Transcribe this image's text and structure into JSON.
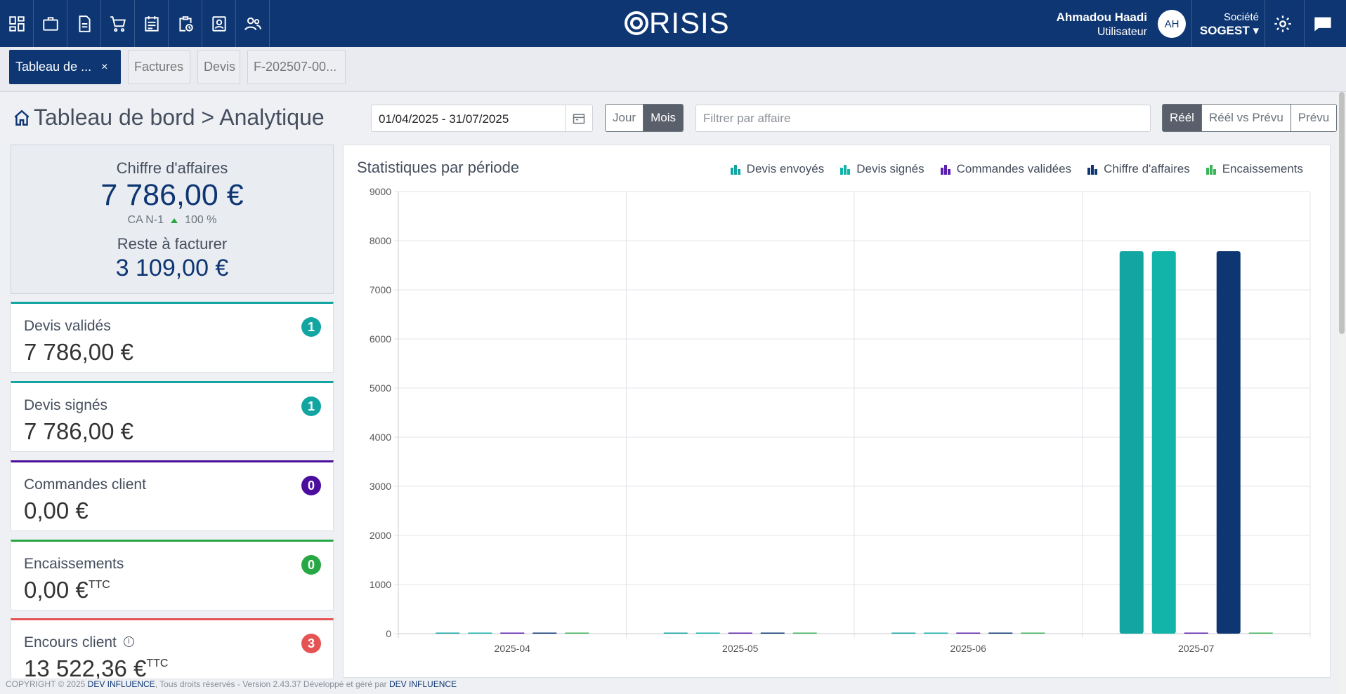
{
  "topbar": {
    "nav_icons": [
      "dashboard-icon",
      "briefcase-icon",
      "document-icon",
      "cart-icon",
      "calendar-list-icon",
      "clipboard-clock-icon",
      "contact-card-icon",
      "users-icon"
    ],
    "logo": "RISIS",
    "user_name": "Ahmadou Haadi",
    "user_role": "Utilisateur",
    "avatar_initials": "AH",
    "company_label": "Société",
    "company_name": "SOGEST ▾"
  },
  "tabs": [
    {
      "label": "Tableau de ...",
      "close": "×",
      "active": true
    },
    {
      "label": "Factures"
    },
    {
      "label": "Devis"
    },
    {
      "label": "F-202507-00..."
    }
  ],
  "header": {
    "title": "Tableau de bord > Analytique",
    "date_range": "01/04/2025 - 31/07/2025",
    "period": [
      "Jour",
      "Mois"
    ],
    "period_selected": "Mois",
    "filter_placeholder": "Filtrer par affaire",
    "mode": [
      "Réél",
      "Réél vs Prévu",
      "Prévu"
    ],
    "mode_selected": "Réél"
  },
  "summary": {
    "ca_title": "Chiffre d'affaires",
    "ca_value": "7 786,00 €",
    "ca_n1_label": "CA N-1",
    "ca_n1_value": "100 %",
    "rest_title": "Reste à facturer",
    "rest_value": "3 109,00 €"
  },
  "kpis": [
    {
      "title": "Devis validés",
      "value": "7 786,00 €",
      "badge": "1",
      "color": "#12a5a2"
    },
    {
      "title": "Devis signés",
      "value": "7 786,00 €",
      "badge": "1",
      "color": "#12a5a2"
    },
    {
      "title": "Commandes client",
      "value": "0,00 €",
      "badge": "0",
      "color": "#4b0d9e"
    },
    {
      "title": "Encaissements",
      "value": "0,00 €",
      "sup": "TTC",
      "badge": "0",
      "color": "#28a745"
    },
    {
      "title": "Encours client",
      "value": "13 522,36 €",
      "sup": "TTC",
      "badge": "3",
      "color": "#e55353",
      "info": "i"
    }
  ],
  "chart_data": {
    "type": "bar",
    "title": "Statistiques par période",
    "categories": [
      "2025-04",
      "2025-05",
      "2025-06",
      "2025-07"
    ],
    "series": [
      {
        "name": "Devis envoyés",
        "color": "#12a5a2",
        "values": [
          0,
          0,
          0,
          7786
        ]
      },
      {
        "name": "Devis signés",
        "color": "#12b3a8",
        "values": [
          0,
          0,
          0,
          7786
        ]
      },
      {
        "name": "Commandes validées",
        "color": "#5b1fae",
        "values": [
          0,
          0,
          0,
          0
        ]
      },
      {
        "name": "Chiffre d'affaires",
        "color": "#0e3673",
        "values": [
          0,
          0,
          0,
          7786
        ]
      },
      {
        "name": "Encaissements",
        "color": "#3cb45a",
        "values": [
          0,
          0,
          0,
          0
        ]
      }
    ],
    "ylim": [
      0,
      9000
    ],
    "yticks": [
      "0",
      "1000",
      "2000",
      "3000",
      "4000",
      "5000",
      "6000",
      "7000",
      "8000",
      "9000"
    ],
    "grid": true,
    "legend_position": "top-right"
  },
  "footer": {
    "copyright": "COPYRIGHT © 2025",
    "company": "DEV INFLUENCE",
    "rights": ", Tous droits réservés - Version 2.43.37   Développé et géré par ",
    "company2": "DEV INFLUENCE"
  }
}
